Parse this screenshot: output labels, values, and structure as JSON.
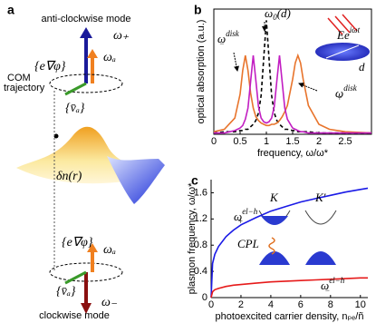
{
  "panel_a": {
    "label": "a",
    "top_mode": "anti-clockwise mode",
    "omega_plus": "ω₊",
    "omega_a_top": "ωₐ",
    "force_top": "{e∇φ}",
    "trajectory_1": "COM",
    "trajectory_2": "trajectory",
    "velocity_top": "{v̄ₐ}",
    "density": "δn(r)",
    "force_bottom": "{e∇φ}",
    "omega_a_bottom": "ωₐ",
    "velocity_bottom": "{v̄ₐ}",
    "omega_minus": "ω₋",
    "bottom_mode": "clockwise mode"
  },
  "chart_data": [
    {
      "type": "line",
      "panel": "b",
      "xlabel": "frequency, ω/ω*",
      "ylabel": "optical absorption (a.u.)",
      "xlim": [
        0,
        3
      ],
      "ylim": [
        0,
        1
      ],
      "xticks": [
        0,
        0.5,
        1,
        1.5,
        2,
        2.5
      ],
      "x": [
        0,
        0.2,
        0.4,
        0.5,
        0.55,
        0.6,
        0.65,
        0.7,
        0.75,
        0.8,
        0.85,
        0.9,
        0.95,
        1.0,
        1.05,
        1.1,
        1.15,
        1.2,
        1.25,
        1.3,
        1.35,
        1.4,
        1.5,
        1.55,
        1.6,
        1.65,
        1.7,
        1.8,
        2.0,
        2.2,
        2.5,
        3.0
      ],
      "series": [
        {
          "color": "#000000",
          "dash": true,
          "values": [
            0.01,
            0.02,
            0.02,
            0.03,
            0.03,
            0.04,
            0.04,
            0.06,
            0.08,
            0.11,
            0.17,
            0.31,
            0.61,
            0.91,
            0.61,
            0.31,
            0.17,
            0.11,
            0.08,
            0.06,
            0.04,
            0.04,
            0.03,
            0.03,
            0.02,
            0.02,
            0.02,
            0.02,
            0.01,
            0.01,
            0.01,
            0.01
          ]
        },
        {
          "color": "#e8742c",
          "values": [
            0.02,
            0.04,
            0.13,
            0.32,
            0.51,
            0.63,
            0.51,
            0.33,
            0.21,
            0.14,
            0.11,
            0.09,
            0.08,
            0.07,
            0.07,
            0.08,
            0.08,
            0.09,
            0.11,
            0.14,
            0.18,
            0.23,
            0.44,
            0.57,
            0.63,
            0.57,
            0.44,
            0.23,
            0.08,
            0.04,
            0.02,
            0.01
          ]
        },
        {
          "color": "#c21ec2",
          "values": [
            0.01,
            0.01,
            0.03,
            0.05,
            0.07,
            0.12,
            0.21,
            0.42,
            0.63,
            0.43,
            0.22,
            0.13,
            0.1,
            0.09,
            0.1,
            0.13,
            0.22,
            0.43,
            0.63,
            0.42,
            0.21,
            0.12,
            0.05,
            0.04,
            0.03,
            0.02,
            0.02,
            0.01,
            0.01,
            0.01,
            0.01,
            0.01
          ]
        }
      ],
      "annotations": [
        {
          "text": "ω",
          "sub": "−",
          "sup": "disk"
        },
        {
          "text": "ω",
          "sub": "0",
          "rest": "(d)"
        },
        {
          "text": "ω",
          "sub": "+",
          "sup": "disk"
        },
        {
          "text": "Ee",
          "sup": "iωt"
        },
        {
          "text": "d"
        }
      ]
    },
    {
      "type": "line",
      "panel": "c",
      "xlabel": "photoexcited carrier density, nₚₑ/ñ",
      "ylabel": "plasmon frequency, ω/ω*",
      "xlim": [
        0,
        10.5
      ],
      "ylim": [
        0,
        1.8
      ],
      "xticks": [
        0,
        2,
        4,
        6,
        8,
        10
      ],
      "yticks": [
        0,
        0.4,
        0.8,
        1.2,
        1.6
      ],
      "x": [
        0,
        0.1,
        0.25,
        0.5,
        1,
        1.5,
        2,
        3,
        4,
        5,
        6,
        7,
        8,
        9,
        10,
        10.5
      ],
      "series": [
        {
          "color": "#1a1ae6",
          "values": [
            0,
            0.52,
            0.66,
            0.78,
            0.93,
            1.03,
            1.11,
            1.22,
            1.32,
            1.39,
            1.46,
            1.51,
            1.56,
            1.61,
            1.65,
            1.67
          ]
        },
        {
          "color": "#e61a1a",
          "values": [
            0,
            0.09,
            0.12,
            0.14,
            0.17,
            0.19,
            0.2,
            0.22,
            0.24,
            0.25,
            0.26,
            0.27,
            0.28,
            0.29,
            0.3,
            0.3
          ]
        }
      ],
      "annotations": [
        {
          "text": "ω",
          "sub": "+",
          "sup": "el−h"
        },
        {
          "text": "ω",
          "sub": "−",
          "sup": "el−h"
        },
        {
          "text": "K"
        },
        {
          "text": "K′"
        },
        {
          "text": "CPL"
        }
      ]
    }
  ]
}
